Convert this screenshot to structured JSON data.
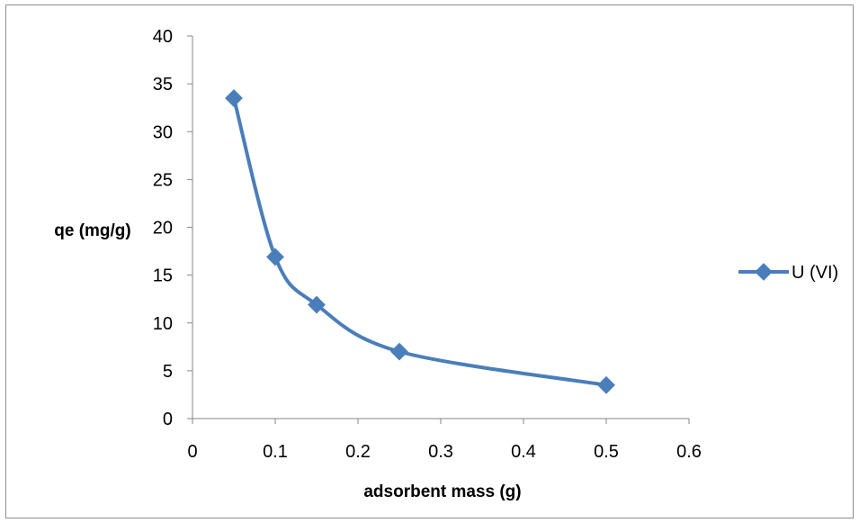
{
  "chart_data": {
    "type": "line",
    "xlabel": "adsorbent mass (g)",
    "ylabel": "qe (mg/g)",
    "xlim": [
      0,
      0.6
    ],
    "ylim": [
      0,
      40
    ],
    "x_ticks": [
      0,
      0.1,
      0.2,
      0.3,
      0.4,
      0.5,
      0.6
    ],
    "y_ticks": [
      0,
      5,
      10,
      15,
      20,
      25,
      30,
      35,
      40
    ],
    "grid": false,
    "smooth": true,
    "legend_position": "right",
    "series": [
      {
        "name": "U (VI)",
        "color": "#4a7ebb",
        "marker": "diamond",
        "x": [
          0.05,
          0.1,
          0.15,
          0.25,
          0.5
        ],
        "y": [
          33.5,
          16.9,
          11.9,
          7.0,
          3.5
        ]
      }
    ]
  }
}
